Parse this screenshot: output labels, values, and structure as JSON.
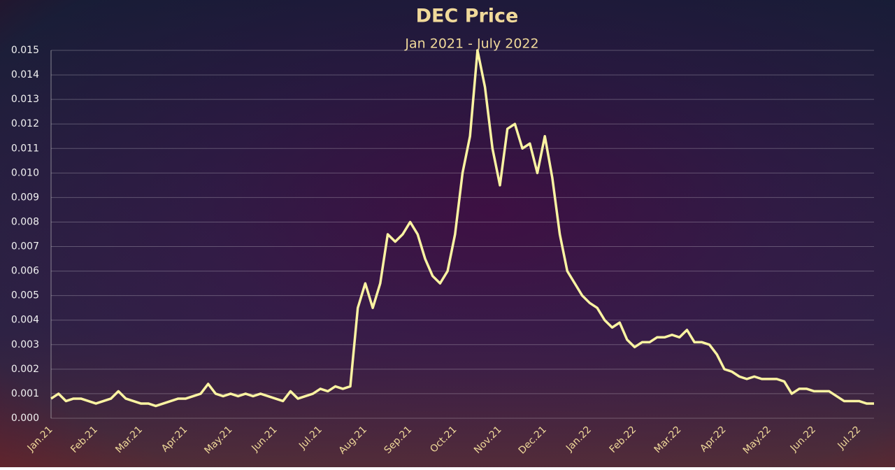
{
  "chart_data": {
    "type": "line",
    "title": "DEC Price",
    "subtitle": "Jan 2021 - July 2022",
    "categories": [
      "Jan.21",
      null,
      null,
      null,
      null,
      null,
      "Feb.21",
      null,
      null,
      null,
      null,
      null,
      "Mar.21",
      null,
      null,
      null,
      null,
      null,
      "Apr.21",
      null,
      null,
      null,
      null,
      null,
      "May.21",
      null,
      null,
      null,
      null,
      null,
      "Jun.21",
      null,
      null,
      null,
      null,
      null,
      "Jul.21",
      null,
      null,
      null,
      null,
      null,
      "Aug.21",
      null,
      null,
      null,
      null,
      null,
      "Sep.21",
      null,
      null,
      null,
      null,
      null,
      "Oct.21",
      null,
      null,
      null,
      null,
      null,
      "Nov.21",
      null,
      null,
      null,
      null,
      null,
      "Dec.21",
      null,
      null,
      null,
      null,
      null,
      "Jan.22",
      null,
      null,
      null,
      null,
      null,
      "Feb.22",
      null,
      null,
      null,
      null,
      null,
      "Mar.22",
      null,
      null,
      null,
      null,
      null,
      "Apr.22",
      null,
      null,
      null,
      null,
      null,
      "May.22",
      null,
      null,
      null,
      null,
      null,
      "Jun.22",
      null,
      null,
      null,
      null,
      null,
      "Jul.22",
      null,
      null
    ],
    "series": [
      {
        "name": "DEC",
        "color": "#fbf3a2",
        "values": [
          0.0008,
          0.001,
          0.0007,
          0.0008,
          0.0008,
          0.0007,
          0.0006,
          0.0007,
          0.0008,
          0.0011,
          0.0008,
          0.0007,
          0.0006,
          0.0006,
          0.0005,
          0.0006,
          0.0007,
          0.0008,
          0.0008,
          0.0009,
          0.001,
          0.0014,
          0.001,
          0.0009,
          0.001,
          0.0009,
          0.001,
          0.0009,
          0.001,
          0.0009,
          0.0008,
          0.0007,
          0.0011,
          0.0008,
          0.0009,
          0.001,
          0.0012,
          0.0011,
          0.0013,
          0.0012,
          0.0013,
          0.0045,
          0.0055,
          0.0045,
          0.0055,
          0.0075,
          0.0072,
          0.0075,
          0.008,
          0.0075,
          0.0065,
          0.0058,
          0.0055,
          0.006,
          0.0075,
          0.01,
          0.0115,
          0.015,
          0.0135,
          0.011,
          0.0095,
          0.0118,
          0.012,
          0.011,
          0.0112,
          0.01,
          0.0115,
          0.0098,
          0.0075,
          0.006,
          0.0055,
          0.005,
          0.0047,
          0.0045,
          0.004,
          0.0037,
          0.0039,
          0.0032,
          0.0029,
          0.0031,
          0.0031,
          0.0033,
          0.0033,
          0.0034,
          0.0033,
          0.0036,
          0.0031,
          0.0031,
          0.003,
          0.0026,
          0.002,
          0.0019,
          0.0017,
          0.0016,
          0.0017,
          0.0016,
          0.0016,
          0.0016,
          0.0015,
          0.001,
          0.0012,
          0.0012,
          0.0011,
          0.0011,
          0.0011,
          0.0009,
          0.0007,
          0.0007,
          0.0007,
          0.0006,
          0.0006
        ]
      }
    ],
    "ylim": [
      0,
      0.015
    ],
    "yticks": [
      {
        "value": 0,
        "label": "0.000"
      },
      {
        "value": 0.001,
        "label": "0.001"
      },
      {
        "value": 0.002,
        "label": "0.002"
      },
      {
        "value": 0.003,
        "label": "0.003"
      },
      {
        "value": 0.004,
        "label": "0.004"
      },
      {
        "value": 0.005,
        "label": "0.005"
      },
      {
        "value": 0.006,
        "label": "0.006"
      },
      {
        "value": 0.007,
        "label": "0.007"
      },
      {
        "value": 0.008,
        "label": "0.008"
      },
      {
        "value": 0.009,
        "label": "0.009"
      },
      {
        "value": 0.01,
        "label": "0.010"
      },
      {
        "value": 0.011,
        "label": "0.011"
      },
      {
        "value": 0.012,
        "label": "0.012"
      },
      {
        "value": 0.013,
        "label": "0.013"
      },
      {
        "value": 0.014,
        "label": "0.014"
      },
      {
        "value": 0.015,
        "label": "0.015"
      }
    ],
    "grid": true
  }
}
